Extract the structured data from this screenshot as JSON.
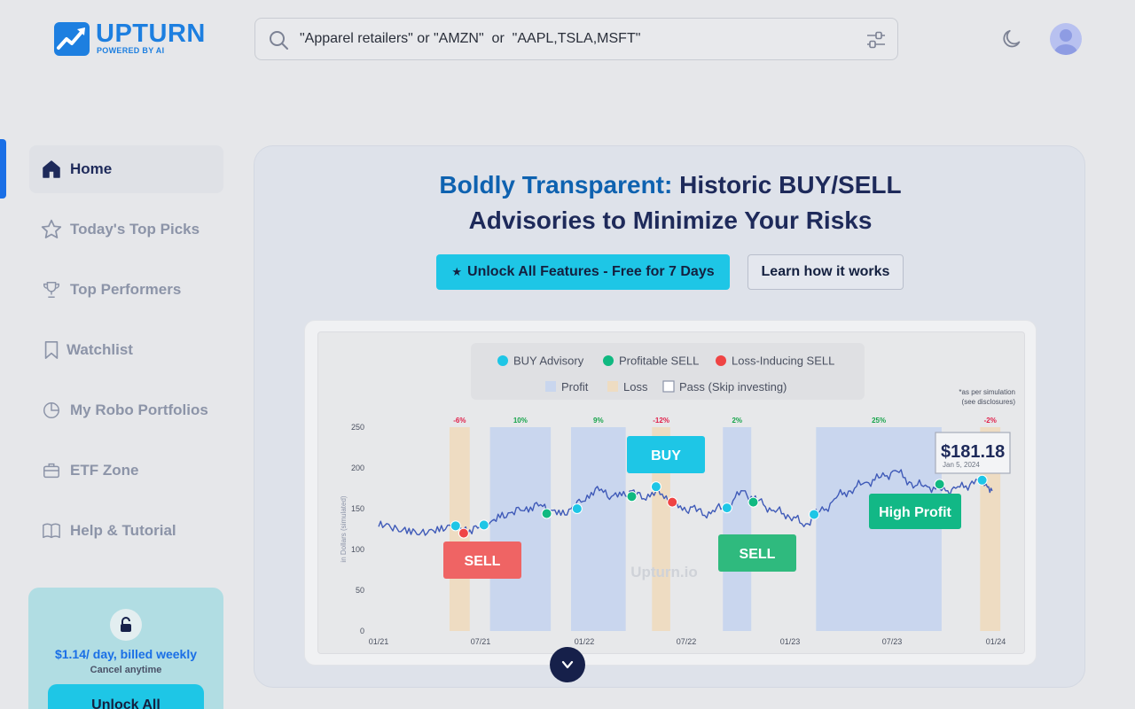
{
  "brand": {
    "name": "UPTURN",
    "tagline": "POWERED BY AI"
  },
  "search": {
    "placeholder": "\"Apparel retailers\" or \"AMZN\"  or  \"AAPL,TSLA,MSFT\""
  },
  "header": {
    "theme_icon": "moon-icon",
    "profile_icon": "user-avatar-icon"
  },
  "sidebar": {
    "items": [
      {
        "label": "Home",
        "icon": "home-icon",
        "active": true
      },
      {
        "label": "Today's Top Picks",
        "icon": "star-icon"
      },
      {
        "label": "Top Performers",
        "icon": "trophy-icon"
      },
      {
        "label": "Watchlist",
        "icon": "bookmark-icon"
      },
      {
        "label": "My Robo Portfolios",
        "icon": "pie-chart-icon"
      },
      {
        "label": "ETF Zone",
        "icon": "briefcase-icon"
      },
      {
        "label": "Help & Tutorial",
        "icon": "book-icon"
      }
    ],
    "promo": {
      "price": "$1.14/ day, billed weekly",
      "cancel": "Cancel anytime",
      "button": "Unlock All"
    }
  },
  "hero": {
    "headline_highlight": "Boldly Transparent:",
    "headline_rest": " Historic BUY/SELL",
    "headline_line2": "Advisories to Minimize Your Risks",
    "cta_label": "Unlock All Features - Free for 7 Days",
    "learn_label": "Learn how it works"
  },
  "colors": {
    "accent": "#1a6fe6",
    "cta": "#1ec6e6",
    "buy": "#1ec6e6",
    "profitable_sell": "#10b981",
    "loss_sell": "#ef4444",
    "profit_band": "#c9d6ee",
    "loss_band": "#eedcc2"
  },
  "chart_data": {
    "type": "line",
    "legend": {
      "markers": [
        "BUY Advisory",
        "Profitable SELL",
        "Loss-Inducing SELL"
      ],
      "bands": [
        "Profit",
        "Loss",
        "Pass (Skip investing)"
      ],
      "placement": "top-center"
    },
    "note": [
      "*as per simulation",
      "(see disclosures)"
    ],
    "ylabel": "in Dollars (simulated)",
    "yticks": [
      0,
      50,
      100,
      150,
      200,
      250
    ],
    "ylim": [
      0,
      250
    ],
    "xticks": [
      "01/21",
      "07/21",
      "01/22",
      "07/22",
      "01/23",
      "07/23",
      "01/24"
    ],
    "xlim": [
      2021.0,
      2024.1
    ],
    "watermark": "Upturn.io",
    "price_label": {
      "value": "$181.18",
      "date": "Jan 5, 2024"
    },
    "callouts": [
      "BUY",
      "SELL",
      "SELL",
      "High Profit"
    ],
    "bands": [
      {
        "x0": 2021.35,
        "x1": 2021.45,
        "kind": "loss",
        "label": "-6%"
      },
      {
        "x0": 2021.55,
        "x1": 2021.85,
        "kind": "profit",
        "label": "10%"
      },
      {
        "x0": 2021.95,
        "x1": 2022.22,
        "kind": "profit",
        "label": "9%"
      },
      {
        "x0": 2022.35,
        "x1": 2022.44,
        "kind": "loss",
        "label": "-12%"
      },
      {
        "x0": 2022.7,
        "x1": 2022.84,
        "kind": "profit",
        "label": "2%"
      },
      {
        "x0": 2023.16,
        "x1": 2023.78,
        "kind": "profit",
        "label": "25%"
      },
      {
        "x0": 2023.97,
        "x1": 2024.07,
        "kind": "loss",
        "label": "-2%"
      }
    ],
    "series": [
      {
        "x": [
          2021.0,
          2021.05,
          2021.1,
          2021.15,
          2021.2,
          2021.25,
          2021.3,
          2021.35,
          2021.4,
          2021.45,
          2021.5,
          2021.55,
          2021.6,
          2021.65,
          2021.7,
          2021.75,
          2021.8,
          2021.85,
          2021.9,
          2021.95,
          2022.0,
          2022.05,
          2022.1,
          2022.15,
          2022.2,
          2022.25,
          2022.3,
          2022.35,
          2022.4,
          2022.45,
          2022.5,
          2022.55,
          2022.6,
          2022.65,
          2022.7,
          2022.75,
          2022.8,
          2022.85,
          2022.9,
          2022.95,
          2023.0,
          2023.05,
          2023.1,
          2023.15,
          2023.2,
          2023.25,
          2023.3,
          2023.35,
          2023.4,
          2023.45,
          2023.5,
          2023.55,
          2023.6,
          2023.65,
          2023.7,
          2023.75,
          2023.8,
          2023.85,
          2023.9,
          2023.95,
          2024.0,
          2024.03
        ],
        "y": [
          128,
          131,
          122,
          126,
          118,
          124,
          122,
          130,
          127,
          124,
          128,
          133,
          139,
          145,
          148,
          152,
          155,
          148,
          142,
          150,
          158,
          170,
          174,
          165,
          166,
          172,
          162,
          170,
          168,
          158,
          148,
          152,
          142,
          148,
          151,
          160,
          172,
          162,
          155,
          148,
          144,
          140,
          128,
          142,
          148,
          162,
          170,
          175,
          182,
          185,
          190,
          197,
          188,
          178,
          179,
          174,
          172,
          175,
          178,
          186,
          180,
          172
        ]
      }
    ],
    "markers": [
      {
        "x": 2021.38,
        "y": 129,
        "kind": "buy"
      },
      {
        "x": 2021.42,
        "y": 120,
        "kind": "loss"
      },
      {
        "x": 2021.52,
        "y": 130,
        "kind": "buy"
      },
      {
        "x": 2021.83,
        "y": 144,
        "kind": "profit"
      },
      {
        "x": 2021.98,
        "y": 150,
        "kind": "buy"
      },
      {
        "x": 2022.25,
        "y": 165,
        "kind": "profit"
      },
      {
        "x": 2022.37,
        "y": 177,
        "kind": "buy"
      },
      {
        "x": 2022.45,
        "y": 158,
        "kind": "loss"
      },
      {
        "x": 2022.72,
        "y": 151,
        "kind": "buy"
      },
      {
        "x": 2022.85,
        "y": 158,
        "kind": "profit"
      },
      {
        "x": 2023.15,
        "y": 143,
        "kind": "buy"
      },
      {
        "x": 2023.77,
        "y": 180,
        "kind": "profit"
      },
      {
        "x": 2023.98,
        "y": 185,
        "kind": "buy"
      }
    ]
  }
}
